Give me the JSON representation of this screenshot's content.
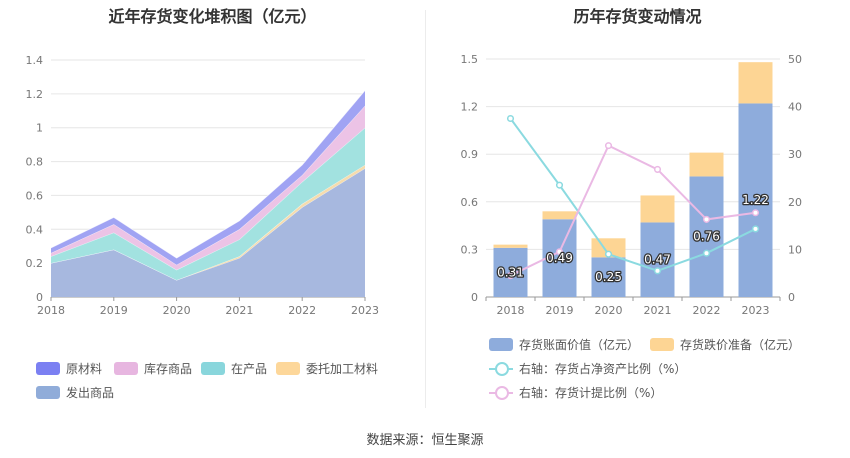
{
  "source": "数据来源：恒生聚源",
  "left_chart_title": "近年存货变化堆积图（亿元）",
  "right_chart_title": "历年存货变动情况",
  "chart_data": [
    {
      "type": "area",
      "stacked": true,
      "title": "近年存货变化堆积图（亿元）",
      "x": [
        "2018",
        "2019",
        "2020",
        "2021",
        "2022",
        "2023"
      ],
      "ylim": [
        0,
        1.4
      ],
      "yticks": [
        "0",
        "0.2",
        "0.4",
        "0.6",
        "0.8",
        "1",
        "1.2",
        "1.4"
      ],
      "legend_position": "bottom",
      "series": [
        {
          "name": "发出商品",
          "color": "#a7b8df",
          "values": [
            0.2,
            0.28,
            0.1,
            0.23,
            0.53,
            0.76
          ]
        },
        {
          "name": "委托加工材料",
          "color": "#f5dcae",
          "values": [
            0.0,
            0.0,
            0.0,
            0.01,
            0.02,
            0.02
          ]
        },
        {
          "name": "在产品",
          "color": "#a2e2e0",
          "values": [
            0.04,
            0.1,
            0.06,
            0.1,
            0.13,
            0.22
          ]
        },
        {
          "name": "库存商品",
          "color": "#ecc3e6",
          "values": [
            0.02,
            0.05,
            0.03,
            0.06,
            0.04,
            0.13
          ]
        },
        {
          "name": "原材料",
          "color": "#a0a3f3",
          "values": [
            0.03,
            0.04,
            0.04,
            0.05,
            0.06,
            0.09
          ]
        }
      ],
      "legend_order": [
        "原材料",
        "库存商品",
        "在产品",
        "委托加工材料",
        "发出商品"
      ],
      "legend_colors": {
        "原材料": "#7b80f2",
        "库存商品": "#e7b6e0",
        "在产品": "#89d6dc",
        "委托加工材料": "#fdd79a",
        "发出商品": "#90acd9"
      }
    },
    {
      "type": "bar",
      "stacked": true,
      "title": "历年存货变动情况",
      "categories": [
        "2018",
        "2019",
        "2020",
        "2021",
        "2022",
        "2023"
      ],
      "ylim": [
        0,
        1.5
      ],
      "yticks": [
        "0",
        "0.3",
        "0.6",
        "0.9",
        "1.2",
        "1.5"
      ],
      "y2lim": [
        0,
        50
      ],
      "y2ticks": [
        "0",
        "10",
        "20",
        "30",
        "40",
        "50"
      ],
      "legend_position": "bottom",
      "series": [
        {
          "name": "存货账面价值（亿元）",
          "color": "#8eacdc",
          "values": [
            0.31,
            0.49,
            0.25,
            0.47,
            0.76,
            1.22
          ],
          "labels": [
            "0.31",
            "0.49",
            "0.25",
            "0.47",
            "0.76",
            "1.22"
          ]
        },
        {
          "name": "存货跌价准备（亿元）",
          "color": "#fdd594",
          "values": [
            0.02,
            0.05,
            0.12,
            0.17,
            0.15,
            0.26
          ]
        }
      ],
      "line_series": [
        {
          "name": "右轴：存货占净资产比例（%）",
          "color": "#8bdae0",
          "axis": "right",
          "values": [
            37.5,
            23.5,
            9,
            5.5,
            9.2,
            14.3
          ]
        },
        {
          "name": "右轴：存货计提比例（%）",
          "color": "#eab9e4",
          "axis": "right",
          "values": [
            4.5,
            9.5,
            31.8,
            26.8,
            16.3,
            17.7
          ]
        }
      ]
    }
  ]
}
